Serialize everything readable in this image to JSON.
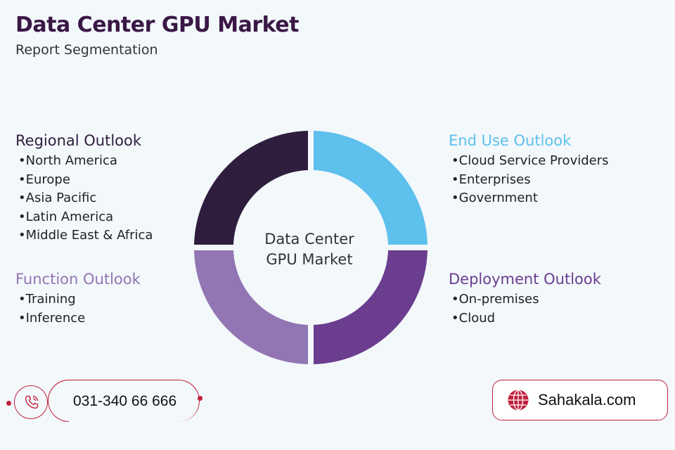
{
  "header": {
    "title": "Data Center GPU Market",
    "subtitle": "Report Segmentation"
  },
  "center": {
    "line1": "Data Center",
    "line2": "GPU Market"
  },
  "segments": {
    "regional": {
      "title": "Regional Outlook",
      "color": "#2f1d3e",
      "items": [
        "North America",
        "Europe",
        "Asia Pacific",
        "Latin America",
        "Middle East & Africa"
      ]
    },
    "function": {
      "title": "Function Outlook",
      "color": "#9275b3",
      "items": [
        "Training",
        "Inference"
      ]
    },
    "end_use": {
      "title": "End Use Outlook",
      "color": "#5ec0ec",
      "items": [
        "Cloud Service Providers",
        "Enterprises",
        "Government"
      ]
    },
    "deployment": {
      "title": "Deployment Outlook",
      "color": "#6b3d8f",
      "items": [
        "On-premises",
        "Cloud"
      ]
    }
  },
  "contact": {
    "phone": "031-340 66 666",
    "website": "Sahakala.com",
    "accent": "#c0203c"
  },
  "icons": {
    "phone": "phone-icon",
    "globe": "globe-icon"
  }
}
